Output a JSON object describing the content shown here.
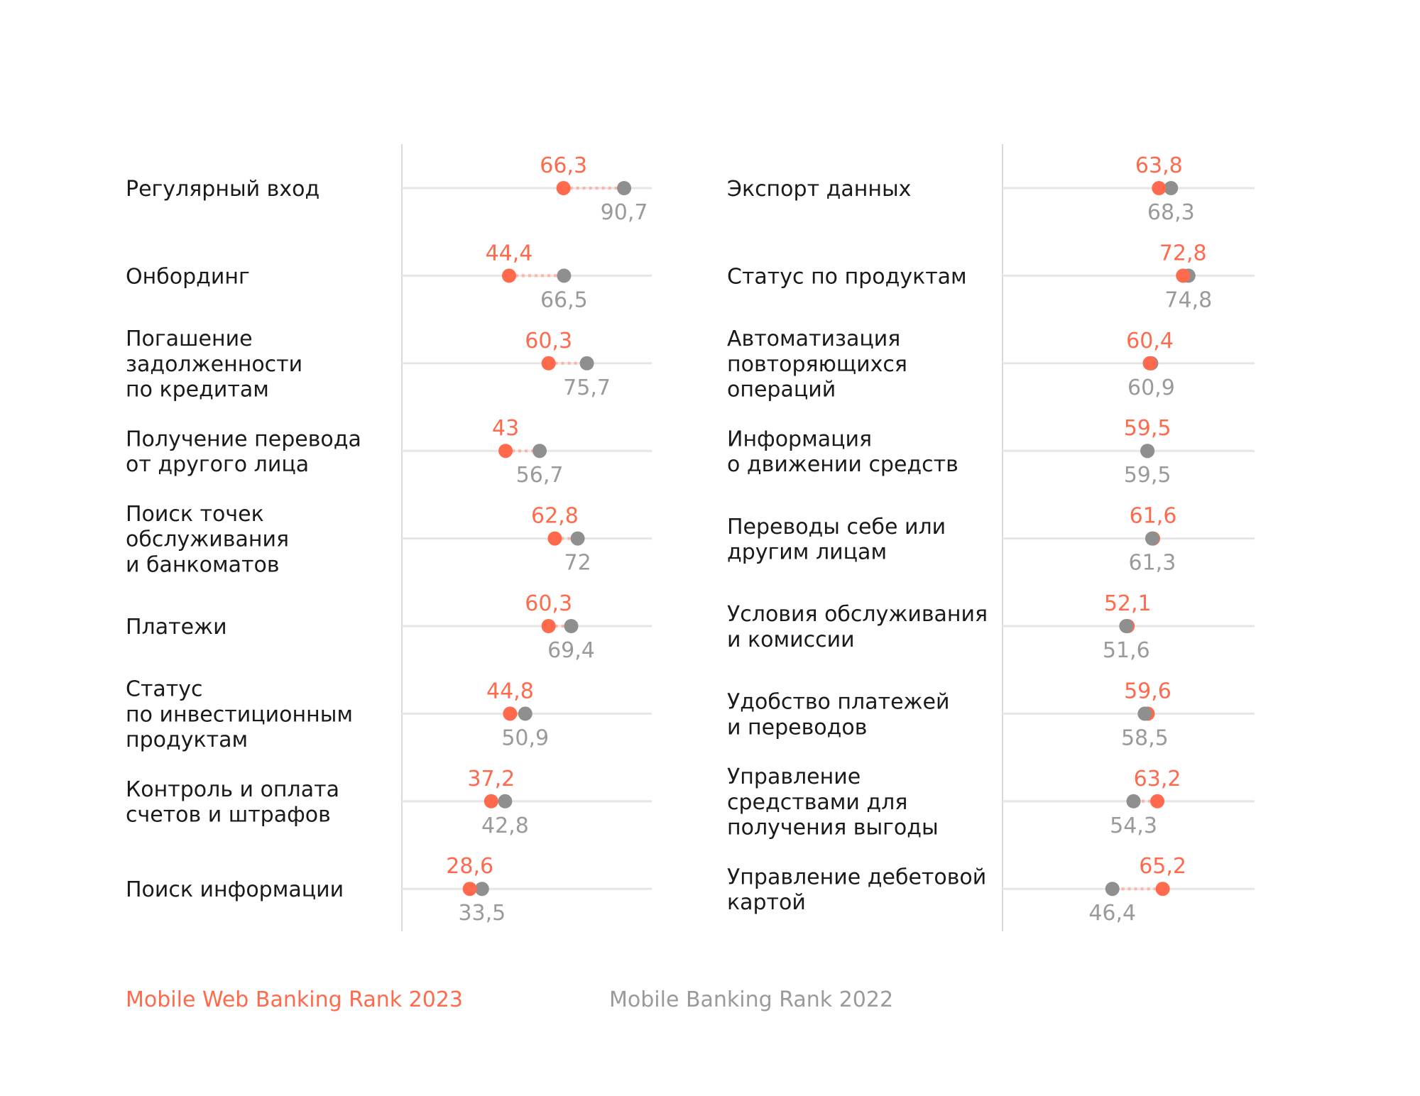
{
  "colors": {
    "series_2023": "#ff6a4d",
    "series_2022": "#8f8f8f",
    "label_2022": "#9a9a9a",
    "connector": "#ffb3a3",
    "track": "#e6e6e6",
    "axis": "#d9d9d9",
    "text": "#1a1a1a"
  },
  "chart_data": [
    {
      "type": "dumbbell",
      "panel": "left",
      "xlim": [
        0,
        100
      ],
      "series": [
        {
          "name": "Mobile Web Banking Rank 2023",
          "values": [
            "66,3",
            "44,4",
            "60,3",
            "43",
            "62,8",
            "60,3",
            "44,8",
            "37,2",
            "28,6"
          ]
        },
        {
          "name": "Mobile Banking Rank 2022",
          "values": [
            "90,7",
            "66,5",
            "75,7",
            "56,7",
            "72",
            "69,4",
            "50,9",
            "42,8",
            "33,5"
          ]
        }
      ],
      "categories": [
        [
          "Регулярный вход"
        ],
        [
          "Онбординг"
        ],
        [
          "Погашение",
          "задолженности",
          "по кредитам"
        ],
        [
          "Получение перевода",
          "от другого лица"
        ],
        [
          "Поиск точек",
          "обслуживания",
          "и банкоматов"
        ],
        [
          "Платежи"
        ],
        [
          "Статус",
          "по инвестиционным",
          "продуктам"
        ],
        [
          "Контроль и оплата",
          "счетов и штрафов"
        ],
        [
          "Поиск информации"
        ]
      ]
    },
    {
      "type": "dumbbell",
      "panel": "right",
      "xlim": [
        0,
        100
      ],
      "series": [
        {
          "name": "Mobile Web Banking Rank 2023",
          "values": [
            "63,8",
            "72,8",
            "60,4",
            "59,5",
            "61,6",
            "52,1",
            "59,6",
            "63,2",
            "65,2"
          ]
        },
        {
          "name": "Mobile Banking Rank 2022",
          "values": [
            "68,3",
            "74,8",
            "60,9",
            "59,5",
            "61,3",
            "51,6",
            "58,5",
            "54,3",
            "46,4"
          ]
        }
      ],
      "categories": [
        [
          "Экспорт данных"
        ],
        [
          "Статус по продуктам"
        ],
        [
          "Автоматизация",
          "повторяющихся",
          "операций"
        ],
        [
          "Информация",
          "о движении средств"
        ],
        [
          "Переводы себе или",
          "другим лицам"
        ],
        [
          "Условия обслуживания",
          "и комиссии"
        ],
        [
          "Удобство платежей",
          "и переводов"
        ],
        [
          "Управление",
          "средствами для",
          "получения выгоды"
        ],
        [
          "Управление дебетовой",
          "картой"
        ]
      ]
    }
  ],
  "legend": {
    "label_2023": "Mobile Web Banking Rank 2023",
    "label_2022": "Mobile Banking Rank 2022"
  }
}
